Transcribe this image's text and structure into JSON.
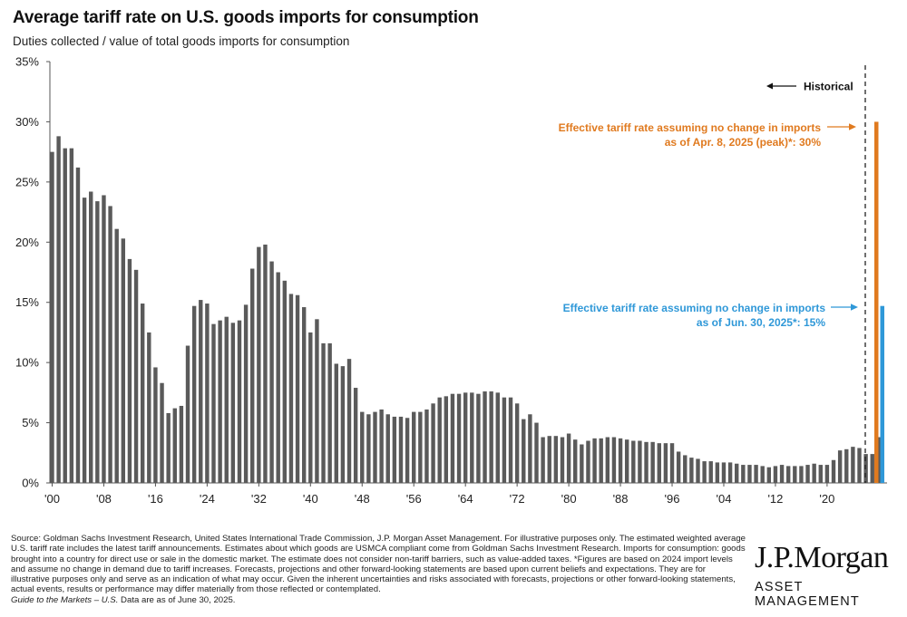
{
  "header": {
    "title": "Average tariff rate on U.S. goods imports for consumption",
    "subtitle": "Duties collected / value of total goods imports for consumption"
  },
  "chart_data": {
    "type": "bar",
    "title": "Average tariff rate on U.S. goods imports for consumption",
    "subtitle": "Duties collected / value of total goods imports for consumption",
    "ylim": [
      0,
      35
    ],
    "yticks": [
      "0%",
      "5%",
      "10%",
      "15%",
      "20%",
      "25%",
      "30%",
      "35%"
    ],
    "xticks": [
      "'00",
      "'08",
      "'16",
      "'24",
      "'32",
      "'40",
      "'48",
      "'56",
      "'64",
      "'72",
      "'80",
      "'88",
      "'96",
      "'04",
      "'12",
      "'20"
    ],
    "x_start_year": 1900,
    "x_end_year": 2024,
    "series": [
      {
        "name": "Historical",
        "color": "#5a5a5a",
        "values": [
          27.5,
          28.8,
          27.8,
          27.8,
          26.2,
          23.7,
          24.2,
          23.4,
          23.9,
          23.0,
          21.1,
          20.3,
          18.6,
          17.7,
          14.9,
          12.5,
          9.6,
          8.3,
          5.8,
          6.2,
          6.4,
          11.4,
          14.7,
          15.2,
          14.9,
          13.2,
          13.5,
          13.8,
          13.3,
          13.5,
          14.8,
          17.8,
          19.6,
          19.8,
          18.4,
          17.5,
          16.8,
          15.7,
          15.6,
          14.6,
          12.5,
          13.6,
          11.6,
          11.6,
          9.9,
          9.7,
          10.3,
          7.9,
          5.9,
          5.7,
          5.9,
          6.1,
          5.7,
          5.5,
          5.5,
          5.4,
          5.9,
          5.9,
          6.1,
          6.6,
          7.1,
          7.2,
          7.4,
          7.4,
          7.5,
          7.5,
          7.4,
          7.6,
          7.6,
          7.5,
          7.1,
          7.1,
          6.6,
          5.3,
          5.7,
          5.0,
          3.8,
          3.9,
          3.9,
          3.8,
          4.1,
          3.6,
          3.2,
          3.5,
          3.7,
          3.7,
          3.8,
          3.8,
          3.7,
          3.6,
          3.5,
          3.5,
          3.4,
          3.4,
          3.3,
          3.3,
          3.3,
          2.6,
          2.3,
          2.1,
          2.0,
          1.8,
          1.8,
          1.7,
          1.7,
          1.7,
          1.6,
          1.5,
          1.5,
          1.5,
          1.4,
          1.3,
          1.4,
          1.5,
          1.4,
          1.4,
          1.4,
          1.5,
          1.6,
          1.5,
          1.5,
          1.9,
          2.7,
          2.8,
          3.0,
          2.9,
          2.4,
          2.4,
          3.8
        ]
      },
      {
        "name": "Effective tariff rate assuming no change in imports as of Apr. 8, 2025 (peak)*: 30%",
        "color": "#e07a1f",
        "values": [
          30
        ]
      },
      {
        "name": "Effective tariff rate assuming no change in imports as of Jun. 30, 2025*: 15%",
        "color": "#2f98d8",
        "values": [
          14.7
        ]
      }
    ],
    "annotations": {
      "historical": "Historical",
      "orange_line1": "Effective tariff rate assuming no change in imports",
      "orange_line2": "as of Apr. 8, 2025 (peak)*: 30%",
      "blue_line1": "Effective tariff rate assuming no change in imports",
      "blue_line2": "as of Jun. 30, 2025*: 15%"
    },
    "grid": false,
    "legend": "annotations"
  },
  "footer": {
    "source": "Source: Goldman Sachs Investment Research, United States International Trade Commission, J.P. Morgan Asset Management. For illustrative purposes only. The estimated weighted average U.S. tariff rate includes the latest tariff announcements. Estimates about which goods are USMCA compliant come from Goldman Sachs Investment Research. Imports for consumption: goods brought into a country for direct use or sale in the domestic market. The estimate does not consider non-tariff barriers, such as value-added taxes. *Figures are based on 2024 import levels and assume no change in demand due to tariff increases. Forecasts, projections and other forward-looking statements are based upon current beliefs and expectations. They are for illustrative purposes only and serve as an indication of what may occur. Given the inherent uncertainties and risks associated with forecasts, projections or other forward-looking statements, actual events, results or performance may differ materially from those reflected or contemplated.",
    "guide": "Guide to the Markets – U.S.",
    "date_note": " Data are as of June 30, 2025."
  },
  "logo": {
    "name": "J.P.Morgan",
    "tagline": "ASSET MANAGEMENT"
  }
}
